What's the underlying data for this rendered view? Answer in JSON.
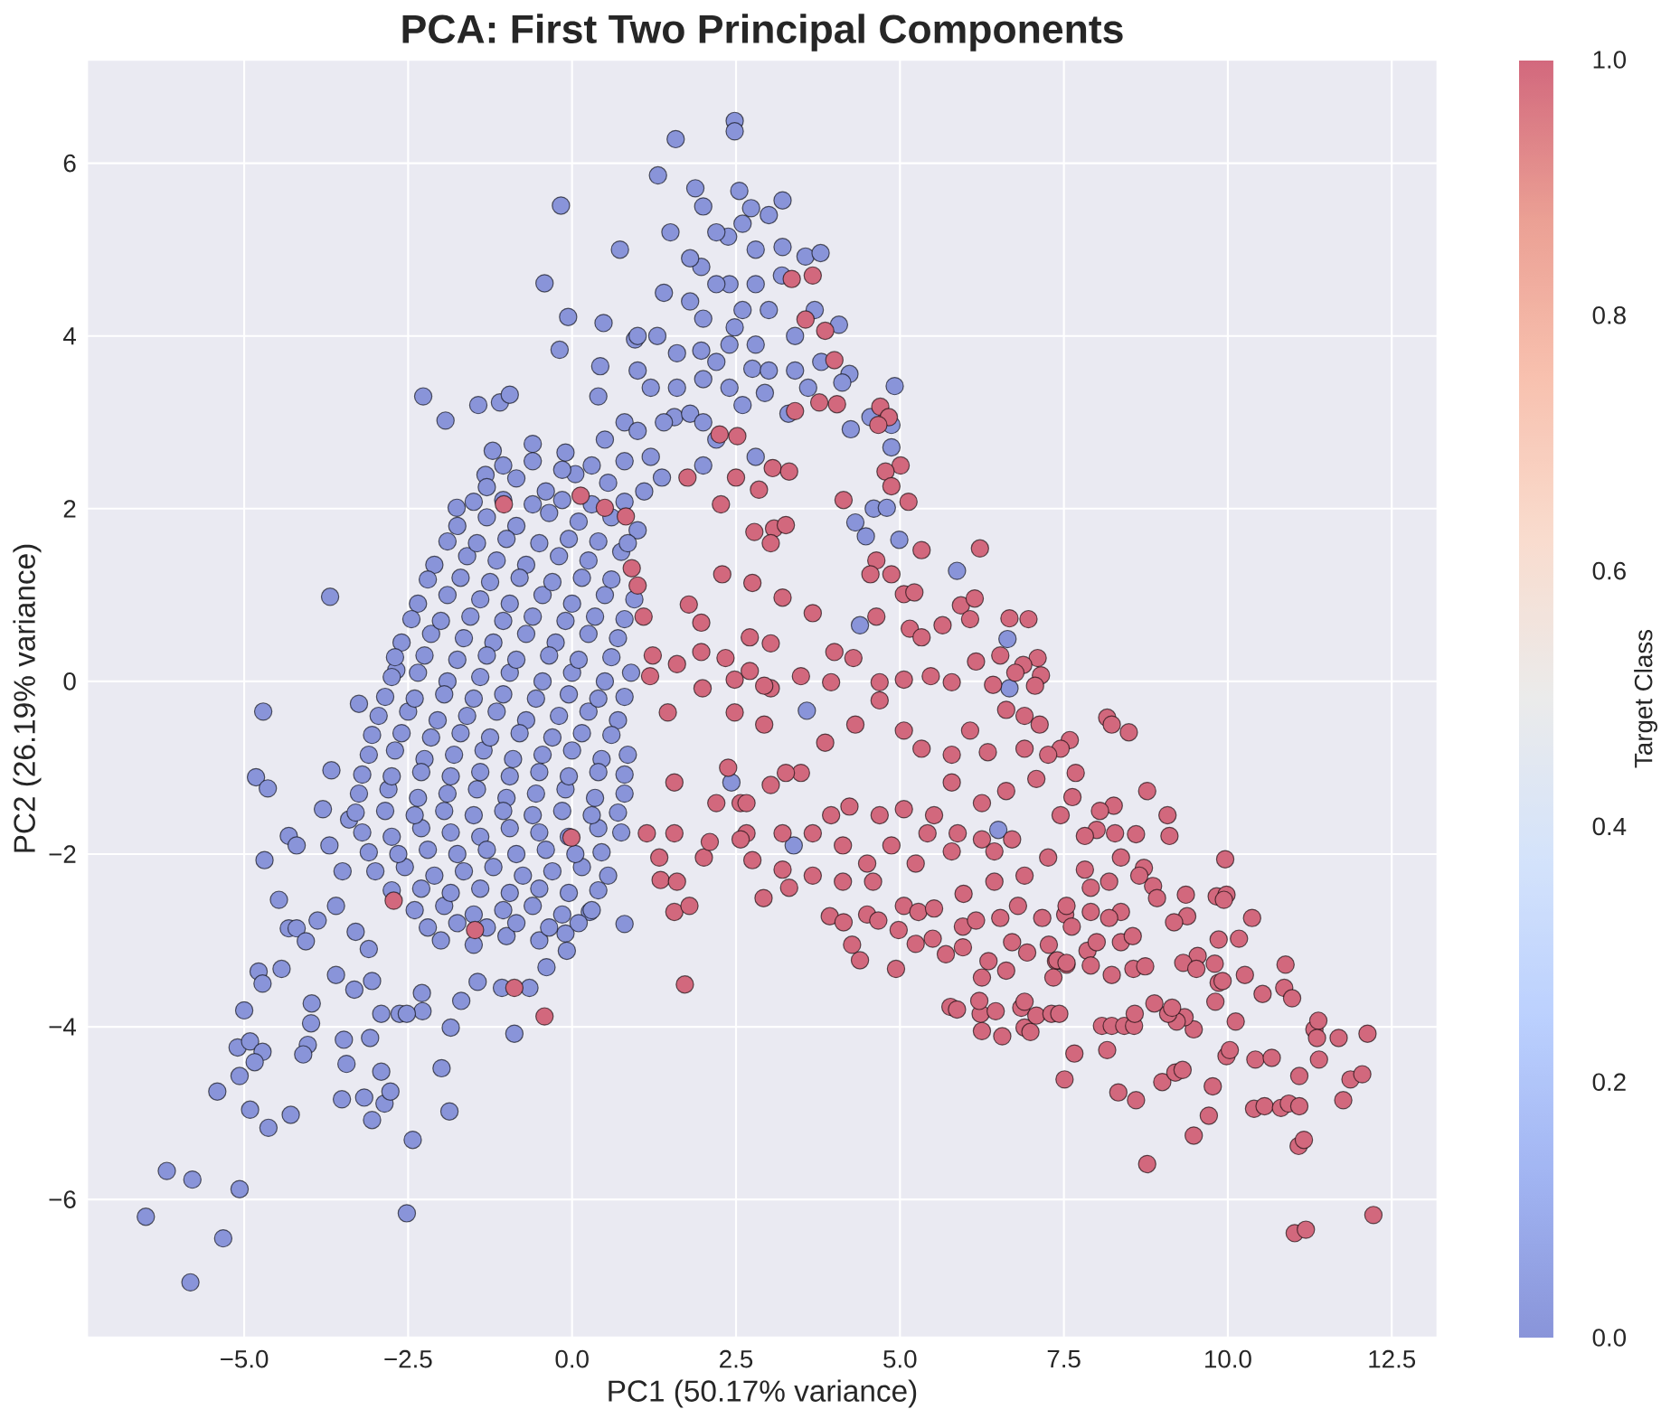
{
  "chart_data": {
    "type": "scatter",
    "title": "PCA: First Two Principal Components",
    "xlabel": "PC1 (50.17% variance)",
    "ylabel": "PC2 (26.19% variance)",
    "clabel": "Target Class",
    "xlim": [
      -7.4,
      13.2
    ],
    "ylim": [
      -7.6,
      7.2
    ],
    "xticks": [
      {
        "value": -5,
        "label": "−5.0"
      },
      {
        "value": -2.5,
        "label": "−2.5"
      },
      {
        "value": 0,
        "label": "0.0"
      },
      2.5,
      {
        "value": 5,
        "label": "5.0"
      },
      7.5,
      {
        "value": 10,
        "label": "10.0"
      },
      12.5
    ],
    "yticks": [
      {
        "value": -6,
        "label": "−6"
      },
      {
        "value": -4,
        "label": "−4"
      },
      {
        "value": -2,
        "label": "−2"
      },
      0,
      2,
      4,
      6
    ],
    "clim": [
      0,
      1
    ],
    "cticks": [
      {
        "value": 0,
        "label": "0.0"
      },
      0.2,
      0.4,
      0.6,
      0.8,
      {
        "value": 1,
        "label": "1.0"
      }
    ],
    "grid": true,
    "marker": "circle",
    "series": [
      {
        "x": [
          2.48,
          2.48,
          1.58,
          -0.17,
          1.31,
          1.88,
          2.55,
          3.21,
          -0.42,
          0.73,
          -0.06,
          0.48,
          -0.19,
          0.43,
          -2.27,
          -1.93,
          -1.43,
          -1.1,
          -0.95,
          -1.76,
          -1.21,
          -1.32,
          -3.69,
          -2.68,
          0.96,
          3.21,
          2.38,
          1.97,
          2.48,
          2.75,
          1.97,
          1.56,
          2.94,
          1.37,
          2.73,
          3.56,
          3.79,
          4.07,
          4.23,
          4.12,
          4.92,
          4.55,
          4.87,
          4.25,
          4.87,
          4.6,
          4.8,
          4.32,
          4.48,
          4.99,
          5.87,
          6.64,
          6.67,
          4.39,
          6.5,
          3.38,
          2.43,
          3.58,
          0.8,
          1.2,
          1.6,
          2.0,
          2.4,
          2.8,
          2.2,
          1.8,
          1.4,
          3.0,
          3.4,
          3.0,
          2.6,
          2.2,
          1.8,
          3.6,
          3.8,
          2.4,
          1.2,
          2.0,
          0.4,
          2.8,
          3.3,
          2.0,
          1.0,
          1.5,
          -4.71,
          -3.25,
          -4.82,
          -4.64,
          -3.67,
          -3.8,
          -4.69,
          -4.32,
          -4.2,
          -4.47,
          -4.32,
          -4.2,
          -4.06,
          -3.88,
          -4.78,
          -4.72,
          -4.43,
          -5.0,
          -5.1,
          -4.91,
          -4.72,
          -4.84,
          -5.41,
          -5.07,
          -4.91,
          -4.63,
          -4.29,
          -3.97,
          -3.98,
          -4.03,
          -4.1,
          -3.48,
          -3.44,
          -3.51,
          -3.17,
          -3.05,
          -2.86,
          -2.77,
          -2.91,
          -3.08,
          -2.43,
          -2.52,
          -1.99,
          -1.87,
          -1.85,
          -1.69,
          -0.88,
          -2.29,
          -2.28,
          -2.63,
          -2.52,
          -2.91,
          -3.6,
          -3.32,
          -3.05,
          -6.18,
          -5.79,
          -5.07,
          -6.5,
          -5.32,
          -5.82,
          0.8,
          -0.1,
          -0.08,
          -0.39,
          -0.65,
          -1.07,
          -1.44,
          0.27,
          -3.5,
          -3.6,
          -3.3,
          -3.7,
          -3.4,
          -3.1,
          -0.6,
          -0.1,
          0.5,
          -1.3,
          -0.85,
          -0.4,
          0.05,
          0.55,
          1.1,
          -1.75,
          -1.3,
          -0.85,
          -0.35,
          0.1,
          0.6,
          1.0,
          -2.1,
          -1.6,
          -1.15,
          -0.7,
          -0.2,
          0.25,
          0.75,
          -2.35,
          -1.9,
          -1.4,
          -0.95,
          -0.45,
          0.0,
          0.5,
          0.95,
          -2.6,
          -2.15,
          -1.65,
          -1.2,
          -0.7,
          -0.25,
          0.25,
          0.7,
          -2.75,
          -2.35,
          -1.9,
          -1.4,
          -0.95,
          -0.45,
          0.0,
          0.5,
          0.9,
          -2.95,
          -2.5,
          -2.05,
          -1.6,
          -1.15,
          -0.7,
          -0.2,
          0.25,
          0.7,
          -3.1,
          -2.7,
          -2.25,
          -1.8,
          -1.35,
          -0.9,
          -0.45,
          0.0,
          0.45,
          0.85,
          -3.25,
          -2.8,
          -2.35,
          -1.9,
          -1.45,
          -1.0,
          -0.55,
          -0.1,
          0.35,
          0.8,
          -3.2,
          -2.75,
          -2.3,
          -1.85,
          -1.4,
          -0.95,
          -0.5,
          -0.05,
          0.4,
          0.75,
          -3.0,
          -2.55,
          -2.1,
          -1.65,
          -1.2,
          -0.75,
          -0.3,
          0.15,
          0.55,
          -2.4,
          -1.95,
          -1.5,
          -1.05,
          -0.6,
          -0.15,
          0.3,
          -2.0,
          -1.5,
          -1.0,
          -0.5,
          -1.05,
          -0.6,
          -0.15,
          0.3,
          0.8,
          -1.5,
          -1.05,
          -0.6,
          -0.15,
          0.3,
          0.8,
          -1.9,
          -1.45,
          -1.0,
          -0.5,
          -0.05,
          0.4,
          0.85,
          -2.2,
          -1.7,
          -1.25,
          -0.8,
          -0.3,
          0.15,
          0.6,
          -2.45,
          -2.0,
          -1.55,
          -1.05,
          -0.6,
          -0.1,
          0.35,
          0.8,
          -2.7,
          -2.25,
          -1.75,
          -1.3,
          -0.85,
          -0.35,
          0.1,
          0.6,
          -2.85,
          -2.4,
          -1.95,
          -1.5,
          -1.05,
          -0.55,
          -0.05,
          0.4,
          0.8,
          -3.05,
          -2.6,
          -2.15,
          -1.7,
          -1.25,
          -0.8,
          -0.3,
          0.15,
          0.6,
          -3.2,
          -2.75,
          -2.3,
          -1.85,
          -1.4,
          -0.95,
          -0.5,
          -0.05,
          0.4,
          0.8,
          -3.3,
          -2.85,
          -2.4,
          -1.95,
          -1.5,
          -1.05,
          -0.6,
          -0.15,
          0.3,
          0.7,
          -3.1,
          -2.65,
          -2.2,
          -1.75,
          -1.3,
          -0.85,
          -0.4,
          0.05,
          0.45,
          -2.75,
          -2.3,
          -1.85,
          -1.4,
          -0.95,
          -0.5,
          -0.05,
          0.4,
          -2.2,
          -1.75,
          -1.3,
          -0.85,
          -0.35,
          0.1,
          1.0,
          1.4,
          1.6,
          2.0,
          2.4,
          2.8,
          2.6,
          2.2,
          1.8,
          2.6,
          3.2,
          3.0,
          2.2,
          1.0,
          3.4,
          3.7,
          1.3,
          2.8,
          2.0
        ],
        "values": [
          6.49,
          6.37,
          6.28,
          5.51,
          5.86,
          5.71,
          5.68,
          5.57,
          4.61,
          5.0,
          4.22,
          4.15,
          3.84,
          3.65,
          3.3,
          3.02,
          3.2,
          3.23,
          3.32,
          2.01,
          2.67,
          2.39,
          0.98,
          0.13,
          3.96,
          5.03,
          5.15,
          4.8,
          4.1,
          3.62,
          3.83,
          3.06,
          3.34,
          2.36,
          5.48,
          4.92,
          4.96,
          4.13,
          3.56,
          3.46,
          3.42,
          3.06,
          2.97,
          2.92,
          2.71,
          2.0,
          2.01,
          1.84,
          1.68,
          1.64,
          1.28,
          0.49,
          -0.08,
          0.65,
          -1.72,
          -1.9,
          -1.17,
          -0.34,
          3.0,
          3.4,
          3.8,
          4.2,
          4.6,
          5.0,
          5.2,
          4.9,
          4.5,
          4.3,
          4.0,
          3.6,
          3.2,
          2.8,
          3.1,
          3.4,
          3.7,
          3.9,
          2.6,
          2.5,
          3.3,
          2.6,
          3.1,
          3.5,
          4.0,
          5.2,
          -0.35,
          -0.26,
          -1.11,
          -1.24,
          -1.03,
          -1.48,
          -2.07,
          -1.79,
          -1.9,
          -2.53,
          -2.86,
          -2.86,
          -3.01,
          -2.77,
          -3.36,
          -3.5,
          -3.33,
          -3.81,
          -4.24,
          -4.17,
          -4.29,
          -4.41,
          -4.75,
          -4.57,
          -4.96,
          -5.17,
          -5.02,
          -3.73,
          -3.96,
          -4.21,
          -4.32,
          -4.15,
          -4.43,
          -4.84,
          -4.82,
          -5.08,
          -4.89,
          -4.75,
          -4.52,
          -4.13,
          -5.31,
          -6.16,
          -4.48,
          -4.98,
          -4.01,
          -3.7,
          -4.08,
          -3.61,
          -3.82,
          -3.85,
          -3.85,
          -3.85,
          -3.4,
          -3.57,
          -3.47,
          -5.67,
          -5.77,
          -5.88,
          -6.2,
          -6.45,
          -6.96,
          -2.81,
          -2.92,
          -3.12,
          -3.31,
          -3.55,
          -3.55,
          -3.48,
          -2.67,
          -2.2,
          -2.6,
          -2.9,
          -1.9,
          -1.6,
          -3.1,
          2.75,
          2.65,
          2.8,
          2.25,
          2.35,
          2.2,
          2.4,
          2.3,
          2.2,
          1.8,
          1.9,
          1.8,
          1.95,
          1.85,
          1.9,
          1.75,
          1.35,
          1.45,
          1.4,
          1.35,
          1.45,
          1.4,
          1.5,
          0.9,
          1.0,
          0.95,
          0.9,
          1.0,
          0.9,
          1.0,
          0.95,
          0.45,
          0.55,
          0.5,
          0.45,
          0.55,
          0.45,
          0.55,
          0.5,
          0.05,
          0.1,
          0.0,
          0.05,
          0.1,
          0.0,
          0.1,
          0.0,
          0.1,
          -0.4,
          -0.35,
          -0.45,
          -0.4,
          -0.35,
          -0.45,
          -0.4,
          -0.35,
          -0.45,
          -0.85,
          -0.8,
          -0.9,
          -0.85,
          -0.8,
          -0.9,
          -0.85,
          -0.8,
          -0.9,
          -0.85,
          -1.3,
          -1.25,
          -1.35,
          -1.3,
          -1.25,
          -1.35,
          -1.3,
          -1.25,
          -1.35,
          -1.3,
          -1.75,
          -1.8,
          -1.7,
          -1.75,
          -1.8,
          -1.7,
          -1.75,
          -1.8,
          -1.7,
          -1.75,
          -2.2,
          -2.15,
          -2.25,
          -2.2,
          -2.15,
          -2.25,
          -2.2,
          -2.15,
          -2.25,
          -2.65,
          -2.6,
          -2.7,
          -2.65,
          -2.6,
          -2.7,
          -2.65,
          -3.0,
          -3.05,
          -2.95,
          -3.0,
          2.5,
          2.55,
          2.45,
          2.5,
          2.55,
          2.08,
          2.1,
          2.05,
          2.1,
          2.05,
          2.08,
          1.62,
          1.6,
          1.65,
          1.6,
          1.65,
          1.62,
          1.6,
          1.18,
          1.2,
          1.15,
          1.2,
          1.15,
          1.2,
          1.18,
          0.72,
          0.7,
          0.75,
          0.7,
          0.75,
          0.7,
          0.75,
          0.72,
          0.28,
          0.3,
          0.25,
          0.3,
          0.25,
          0.3,
          0.25,
          0.28,
          -0.18,
          -0.2,
          -0.15,
          -0.2,
          -0.15,
          -0.2,
          -0.15,
          -0.2,
          -0.18,
          -0.62,
          -0.6,
          -0.65,
          -0.6,
          -0.65,
          -0.6,
          -0.65,
          -0.6,
          -0.62,
          -1.08,
          -1.1,
          -1.05,
          -1.1,
          -1.05,
          -1.1,
          -1.05,
          -1.1,
          -1.05,
          -1.08,
          -1.52,
          -1.5,
          -1.55,
          -1.5,
          -1.55,
          -1.5,
          -1.55,
          -1.5,
          -1.55,
          -1.52,
          -1.98,
          -2.0,
          -1.95,
          -2.0,
          -1.95,
          -2.0,
          -1.95,
          -2.0,
          -1.98,
          -2.42,
          -2.4,
          -2.45,
          -2.4,
          -2.45,
          -2.4,
          -2.45,
          -2.42,
          -2.85,
          -2.8,
          -2.85,
          -2.8,
          -2.85,
          -2.8,
          3.6,
          3.0,
          3.4,
          3.0,
          3.4,
          3.9,
          4.3,
          4.6,
          4.4,
          5.3,
          4.7,
          5.4,
          3.7,
          2.9,
          3.6,
          4.3,
          4.0,
          4.6,
          5.5
        ],
        "cvalues": [
          0,
          0,
          0,
          0,
          0,
          0,
          0,
          0,
          0,
          0,
          0,
          0,
          0,
          0,
          0,
          0,
          0,
          0,
          0,
          0,
          0,
          0,
          0,
          0,
          0,
          0,
          0,
          0,
          0,
          0,
          0,
          0,
          0,
          0,
          0,
          0,
          0,
          0,
          0,
          0,
          0,
          0,
          0,
          0,
          0,
          0,
          0,
          0,
          0,
          0,
          0,
          0,
          0,
          0,
          0,
          0,
          0,
          0,
          0,
          0,
          0,
          0,
          0,
          0,
          0,
          0,
          0,
          0,
          0,
          0,
          0,
          0,
          0,
          0,
          0,
          0,
          0,
          0,
          0,
          0,
          0,
          0,
          0,
          0,
          0,
          0,
          0,
          0,
          0,
          0,
          0,
          0,
          0,
          0,
          0,
          0,
          0,
          0,
          0,
          0,
          0,
          0,
          0,
          0,
          0,
          0,
          0,
          0,
          0,
          0,
          0,
          0,
          0,
          0,
          0,
          0,
          0,
          0,
          0,
          0,
          0,
          0,
          0,
          0,
          0,
          0,
          0,
          0,
          0,
          0,
          0,
          0,
          0,
          0,
          0,
          0,
          0,
          0,
          0,
          0,
          0,
          0,
          0,
          0,
          0,
          0,
          0,
          0,
          0,
          0,
          0,
          0,
          0,
          0,
          0,
          0,
          0,
          0,
          0,
          0,
          0,
          0,
          0,
          0,
          0,
          0,
          0,
          0,
          0,
          0,
          0,
          0,
          0,
          0,
          0,
          0,
          0,
          0,
          0,
          0,
          0,
          0,
          0,
          0,
          0,
          0,
          0,
          0,
          0,
          0,
          0,
          0,
          0,
          0,
          0,
          0,
          0,
          0,
          0,
          0,
          0,
          0,
          0,
          0,
          0,
          0,
          0,
          0,
          0,
          0,
          0,
          0,
          0,
          0,
          0,
          0,
          0,
          0,
          0,
          0,
          0,
          0,
          0,
          0,
          0,
          0,
          0,
          0,
          0,
          0,
          0,
          0,
          0,
          0,
          0,
          0,
          0,
          0,
          0,
          0,
          0,
          0,
          0,
          0,
          0,
          0,
          0,
          0,
          0,
          0,
          0,
          0,
          0,
          0,
          0,
          0,
          0,
          0,
          0,
          0,
          0,
          0,
          0,
          0,
          0,
          0,
          0,
          0,
          0,
          0,
          0,
          0,
          0,
          0,
          0,
          0,
          0,
          0,
          0,
          0,
          0,
          0,
          0,
          0,
          0,
          0,
          0,
          0,
          0,
          0,
          0,
          0,
          0,
          0,
          0,
          0,
          0,
          0,
          0,
          0,
          0,
          0,
          0,
          0,
          0,
          0,
          0,
          0,
          0,
          0,
          0,
          0,
          0,
          0,
          0,
          0,
          0,
          0,
          0,
          0,
          0,
          0,
          0,
          0,
          0,
          0,
          0,
          0,
          0,
          0,
          0,
          0,
          0,
          0,
          0,
          0,
          0,
          0,
          0,
          0,
          0,
          0,
          0,
          0,
          0,
          0,
          0,
          0,
          0,
          0,
          0,
          0,
          0,
          0,
          0,
          0,
          0,
          0,
          0,
          0,
          0,
          0,
          0,
          0,
          0,
          0,
          0,
          0,
          0,
          0,
          0,
          0,
          0,
          0,
          0,
          0,
          0,
          0,
          0,
          0,
          0,
          0,
          0,
          0,
          0,
          0,
          0
        ]
      },
      {
        "x": [
          3.35,
          3.67,
          3.86,
          3.56,
          4.0,
          4.7,
          4.83,
          4.67,
          4.04,
          3.77,
          5.01,
          4.78,
          4.87,
          5.13,
          4.14,
          5.33,
          6.22,
          4.64,
          4.87,
          4.55,
          5.06,
          5.22,
          5.93,
          6.14,
          6.07,
          5.65,
          6.67,
          6.96,
          6.53,
          7.1,
          6.88,
          6.76,
          7.15,
          7.06,
          6.16,
          6.42,
          5.15,
          5.33,
          4.64,
          4.29,
          4.0,
          3.67,
          12.22,
          11.02,
          11.19,
          8.77,
          9.48,
          11.08,
          11.16,
          9.71,
          10.4,
          10.56,
          10.81,
          10.93,
          11.09,
          11.76,
          11.87,
          12.05,
          11.09,
          9.77,
          9.0,
          9.2,
          9.31,
          8.6,
          8.33,
          7.51,
          7.66,
          8.16,
          10.42,
          10.67,
          11.39,
          9.98,
          10.03,
          12.13,
          11.69,
          11.32,
          11.38,
          11.36,
          10.12,
          9.48,
          9.34,
          9.22,
          9.09,
          8.88,
          9.15,
          8.08,
          8.23,
          8.42,
          8.57,
          8.58,
          10.53,
          10.86,
          10.98,
          10.88,
          10.26,
          9.81,
          9.86,
          9.8,
          9.92,
          10.17,
          9.86,
          10.37,
          9.83,
          9.98,
          9.94,
          9.96,
          9.38,
          9.18,
          9.54,
          9.32,
          9.52,
          9.36,
          9.11,
          9.08,
          8.77,
          8.49,
          8.16,
          8.23,
          8.6,
          8.72,
          8.86,
          8.92,
          8.26,
          8.05,
          8.0,
          7.52,
          7.62,
          7.86,
          7.91,
          8.23,
          7.38,
          7.54,
          7.34,
          6.9,
          6.99,
          6.56,
          6.25,
          6.23,
          6.46,
          5.77,
          5.87,
          6.21,
          6.85,
          7.08,
          6.9,
          7.31,
          7.43,
          4.94,
          4.39,
          4.27,
          3.93,
          4.14,
          2.92,
          4.98,
          5.24,
          5.5,
          5.96,
          6.16,
          5.96,
          5.7,
          6.35,
          6.62,
          4.5,
          4.67,
          5.06,
          5.28,
          5.52,
          6.71,
          6.94,
          7.27,
          7.4,
          7.54,
          8.37,
          8.56,
          8.74,
          2.48,
          3.03,
          3.49,
          3.95,
          4.69,
          5.06,
          5.47,
          5.79,
          6.62,
          6.9,
          7.13,
          7.59,
          7.45,
          7.26,
          7.68,
          7.08,
          6.62,
          6.25,
          5.79,
          5.52,
          5.06,
          4.69,
          4.23,
          3.95,
          3.67,
          3.21,
          2.66,
          2.57,
          3.03,
          3.49,
          3.86,
          4.32,
          4.69,
          5.06,
          5.33,
          5.79,
          6.07,
          6.34,
          6.9,
          7.45,
          7.82,
          8.28,
          7.63,
          7.26,
          6.9,
          6.44,
          5.97,
          4.59,
          4.13,
          3.67,
          3.21,
          2.75,
          3.31,
          4.5,
          5.24,
          5.79,
          6.44,
          6.71,
          6.25,
          5.88,
          5.42,
          4.87,
          4.13,
          7.82,
          7.91,
          8.19,
          8.37,
          8.65,
          8.37,
          8.19,
          7.91,
          7.54,
          7.17,
          6.8,
          6.53,
          6.25,
          8.0,
          8.55,
          -1.04,
          0.13,
          0.5,
          0.82,
          2.27,
          2.5,
          2.25,
          2.52,
          3.06,
          3.4,
          3.31,
          2.85,
          3.08,
          3.26,
          2.78,
          3.03,
          0.91,
          1.0,
          1.09,
          1.78,
          1.97,
          2.29,
          2.75,
          3.21,
          3.03,
          2.34,
          1.97,
          1.6,
          1.23,
          2.93,
          2.71,
          1.99,
          2.71,
          1.76,
          1.46,
          1.19,
          1.56,
          1.56,
          1.33,
          1.35,
          1.6,
          2.01,
          2.1,
          1.56,
          1.79,
          1.72,
          -0.42,
          -0.88,
          -1.48,
          -2.72,
          -0.01,
          1.14,
          2.38,
          2.57,
          2.66,
          2.2,
          2.48,
          2.93,
          3.26
        ],
        "values": [
          4.66,
          4.7,
          4.06,
          4.19,
          3.72,
          3.18,
          3.06,
          2.97,
          3.21,
          3.23,
          2.5,
          2.43,
          2.26,
          2.08,
          2.1,
          1.52,
          1.54,
          1.4,
          1.24,
          1.24,
          1.01,
          1.03,
          0.88,
          0.96,
          0.72,
          0.65,
          0.73,
          0.72,
          0.3,
          0.27,
          0.19,
          0.1,
          0.07,
          -0.05,
          0.23,
          -0.04,
          0.61,
          0.51,
          0.75,
          0.27,
          0.34,
          0.79,
          -6.18,
          -6.39,
          -6.35,
          -5.59,
          -5.26,
          -5.38,
          -5.31,
          -5.03,
          -4.95,
          -4.92,
          -4.94,
          -4.89,
          -4.92,
          -4.85,
          -4.61,
          -4.55,
          -4.57,
          -4.69,
          -4.64,
          -4.53,
          -4.5,
          -4.85,
          -4.76,
          -4.61,
          -4.31,
          -4.27,
          -4.38,
          -4.36,
          -4.38,
          -4.34,
          -4.27,
          -4.08,
          -4.13,
          -4.03,
          -3.93,
          -4.13,
          -3.94,
          -4.03,
          -3.89,
          -3.94,
          -3.85,
          -3.73,
          -3.78,
          -3.99,
          -3.99,
          -3.99,
          -3.99,
          -3.85,
          -3.62,
          -3.55,
          -3.67,
          -3.28,
          -3.4,
          -3.71,
          -3.49,
          -3.27,
          -3.47,
          -2.98,
          -2.99,
          -2.74,
          -2.49,
          -2.47,
          -2.53,
          -2.06,
          -2.72,
          -2.79,
          -3.18,
          -3.26,
          -3.33,
          -2.47,
          -1.79,
          -1.55,
          -1.27,
          -0.59,
          -0.42,
          -0.5,
          -1.77,
          -2.16,
          -2.37,
          -2.51,
          -1.44,
          -1.5,
          -1.72,
          -2.7,
          -2.84,
          -3.12,
          -3.29,
          -3.4,
          -3.24,
          -3.28,
          -3.43,
          -4.01,
          -4.06,
          -4.11,
          -4.05,
          -3.85,
          -3.82,
          -3.77,
          -3.8,
          -3.7,
          -3.78,
          -3.87,
          -3.71,
          -3.85,
          -3.85,
          -3.33,
          -3.23,
          -3.05,
          -2.72,
          -2.79,
          -2.51,
          -2.88,
          -3.04,
          -2.98,
          -2.84,
          -2.77,
          -3.08,
          -3.16,
          -3.24,
          -3.35,
          -2.7,
          -2.77,
          -2.6,
          -2.67,
          -2.63,
          -3.02,
          -3.14,
          -3.05,
          -3.23,
          -3.26,
          -3.02,
          -3.33,
          -3.3,
          0.02,
          -0.08,
          0.06,
          -0.01,
          -0.01,
          0.02,
          0.06,
          -0.01,
          -0.33,
          -0.4,
          -0.5,
          -0.68,
          -0.78,
          -0.85,
          -1.06,
          -1.13,
          -1.27,
          -1.41,
          -1.17,
          -1.55,
          -1.48,
          -1.55,
          -1.45,
          -1.55,
          -1.76,
          -1.76,
          -1.76,
          -1.41,
          -1.2,
          -1.06,
          -0.71,
          -0.5,
          -0.22,
          -0.57,
          -0.78,
          -0.85,
          -0.57,
          -0.82,
          -0.78,
          -1.55,
          -1.79,
          -1.76,
          -1.34,
          -2.04,
          -2.25,
          -2.32,
          -2.46,
          -2.32,
          -2.32,
          -2.25,
          -2.18,
          -2.07,
          -2.39,
          -2.11,
          -2.11,
          -1.97,
          -1.97,
          -1.83,
          -1.83,
          -1.76,
          -1.76,
          -1.9,
          -1.9,
          -2.18,
          -2.39,
          -2.32,
          -2.04,
          -2.25,
          -2.67,
          -2.74,
          -2.67,
          -2.6,
          -2.74,
          -2.6,
          -2.74,
          -3.43,
          -3.02,
          -2.95,
          2.05,
          2.15,
          2.01,
          1.91,
          2.05,
          2.36,
          2.86,
          2.84,
          2.47,
          3.13,
          2.43,
          2.22,
          1.77,
          1.81,
          1.73,
          1.6,
          1.31,
          1.11,
          0.75,
          0.89,
          0.68,
          1.24,
          1.14,
          0.97,
          0.44,
          0.27,
          0.34,
          0.2,
          0.3,
          -0.05,
          0.12,
          -0.08,
          0.51,
          2.36,
          -0.36,
          0.06,
          -1.17,
          -1.76,
          -2.04,
          -2.3,
          -2.32,
          -2.04,
          -1.86,
          -2.67,
          -2.6,
          -3.51,
          -3.88,
          -3.55,
          -2.88,
          -2.54,
          -1.81,
          -1.76,
          -1.0,
          -1.83,
          -1.41,
          -1.41,
          -0.36,
          -0.5,
          -1.06
        ],
        "cvalues": [
          1,
          1,
          1,
          1,
          1,
          1,
          1,
          1,
          1,
          1,
          1,
          1,
          1,
          1,
          1,
          1,
          1,
          1,
          1,
          1,
          1,
          1,
          1,
          1,
          1,
          1,
          1,
          1,
          1,
          1,
          1,
          1,
          1,
          1,
          1,
          1,
          1,
          1,
          1,
          1,
          1,
          1,
          1,
          1,
          1,
          1,
          1,
          1,
          1,
          1,
          1,
          1,
          1,
          1,
          1,
          1,
          1,
          1,
          1,
          1,
          1,
          1,
          1,
          1,
          1,
          1,
          1,
          1,
          1,
          1,
          1,
          1,
          1,
          1,
          1,
          1,
          1,
          1,
          1,
          1,
          1,
          1,
          1,
          1,
          1,
          1,
          1,
          1,
          1,
          1,
          1,
          1,
          1,
          1,
          1,
          1,
          1,
          1,
          1,
          1,
          1,
          1,
          1,
          1,
          1,
          1,
          1,
          1,
          1,
          1,
          1,
          1,
          1,
          1,
          1,
          1,
          1,
          1,
          1,
          1,
          1,
          1,
          1,
          1,
          1,
          1,
          1,
          1,
          1,
          1,
          1,
          1,
          1,
          1,
          1,
          1,
          1,
          1,
          1,
          1,
          1,
          1,
          1,
          1,
          1,
          1,
          1,
          1,
          1,
          1,
          1,
          1,
          1,
          1,
          1,
          1,
          1,
          1,
          1,
          1,
          1,
          1,
          1,
          1,
          1,
          1,
          1,
          1,
          1,
          1,
          1,
          1,
          1,
          1,
          1,
          1,
          1,
          1,
          1,
          1,
          1,
          1,
          1,
          1,
          1,
          1,
          1,
          1,
          1,
          1,
          1,
          1,
          1,
          1,
          1,
          1,
          1,
          1,
          1,
          1,
          1,
          1,
          1,
          1,
          1,
          1,
          1,
          1,
          1,
          1,
          1,
          1,
          1,
          1,
          1,
          1,
          1,
          1,
          1,
          1,
          1,
          1,
          1,
          1,
          1,
          1,
          1,
          1,
          1,
          1,
          1,
          1,
          1,
          1,
          1,
          1,
          1,
          1,
          1,
          1,
          1,
          1,
          1,
          1,
          1,
          1,
          1,
          1,
          1,
          1,
          1,
          1,
          1,
          1,
          1,
          1,
          1,
          1,
          1,
          1,
          1,
          1,
          1,
          1,
          1,
          1,
          1,
          1,
          1,
          1,
          1,
          1,
          1,
          1,
          1,
          1,
          1,
          1,
          1,
          1,
          1,
          1,
          1,
          1,
          1,
          1,
          1,
          1,
          1,
          1,
          1,
          1,
          1,
          1,
          1,
          1,
          1,
          1,
          1,
          1,
          1,
          1,
          1,
          1,
          1,
          1,
          1,
          1,
          1,
          1,
          1,
          1
        ]
      }
    ]
  }
}
